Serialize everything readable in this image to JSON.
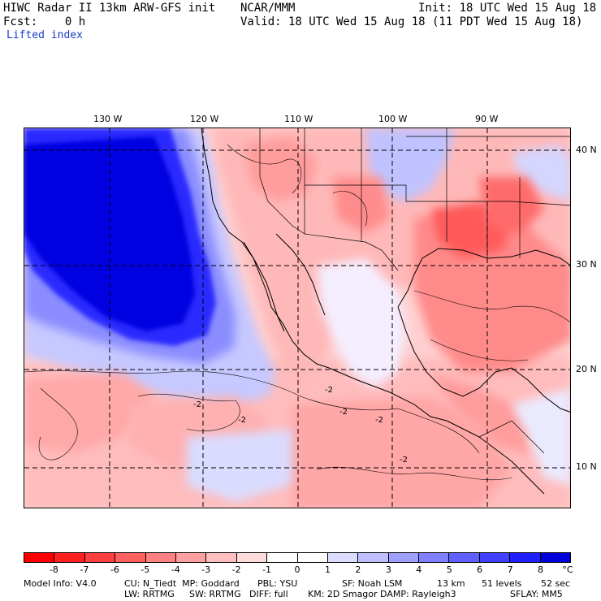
{
  "header": {
    "left_line1": "HIWC Radar II 13km ARW-GFS init",
    "center_line1": "NCAR/MMM",
    "right_line1": "Init: 18 UTC Wed 15 Aug 18",
    "left_line2": "Fcst:    0 h",
    "right_line2": "Valid: 18 UTC Wed 15 Aug 18 (11 PDT Wed 15 Aug 18)",
    "field_name": "Lifted index"
  },
  "map": {
    "lon_labels": [
      "130 W",
      "120 W",
      "110 W",
      "100 W",
      "90 W"
    ],
    "lat_labels": [
      "40 N",
      "30 N",
      "20 N",
      "10 N"
    ],
    "contour_labels": [
      "-2",
      "-2",
      "-2",
      "-2",
      "-2",
      "-2"
    ]
  },
  "colorbar": {
    "tick_labels": [
      "-8",
      "-7",
      "-6",
      "-5",
      "-4",
      "-3",
      "-2",
      "-1",
      "0",
      "1",
      "2",
      "3",
      "4",
      "5",
      "6",
      "7",
      "8",
      "°C"
    ],
    "colors": [
      "#ff0000",
      "#ff2020",
      "#ff4040",
      "#ff6060",
      "#ff8080",
      "#ff9f9f",
      "#ffbfbf",
      "#ffdcdc",
      "#ffffff",
      "#ffffff",
      "#dcdcff",
      "#bfbfff",
      "#9f9fff",
      "#8080ff",
      "#6060ff",
      "#4040ff",
      "#2020ff",
      "#0000dd"
    ]
  },
  "footer": {
    "line1_a": "Model Info: V4.0",
    "line1_b": "CU: N_Tiedt  MP: Goddard",
    "line1_c": "PBL: YSU",
    "line1_d": "SF: Noah LSM",
    "line1_e": "13 km",
    "line1_f": "51 levels",
    "line1_g": "52 sec",
    "line2_a": "LW: RRTMG",
    "line2_b": "SW: RRTMG",
    "line2_c": "DIFF: full",
    "line2_d": "KM: 2D Smagor DAMP: Rayleigh3",
    "line2_e": "SFLAY: MM5"
  }
}
